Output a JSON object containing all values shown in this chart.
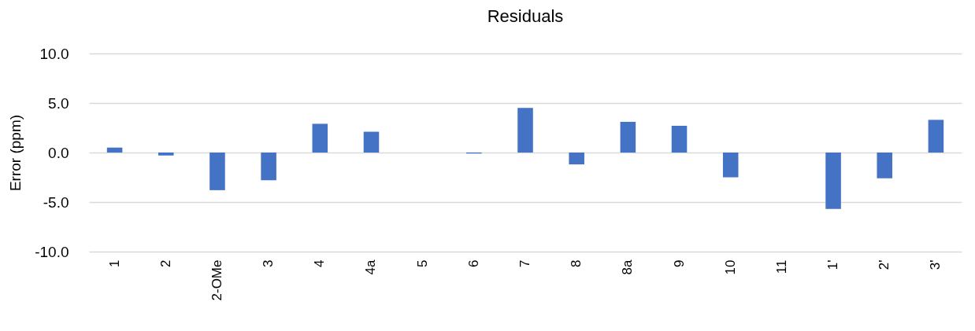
{
  "chart_data": {
    "type": "bar",
    "title": "Residuals",
    "ylabel": "Error (ppm)",
    "categories": [
      "1",
      "2",
      "2-OMe",
      "3",
      "4",
      "4a",
      "5",
      "6",
      "7",
      "8",
      "8a",
      "9",
      "10",
      "11",
      "1'",
      "2'",
      "3'"
    ],
    "values": [
      0.5,
      -0.3,
      -3.8,
      -2.8,
      2.9,
      2.1,
      0,
      -0.1,
      4.5,
      -1.2,
      3.1,
      2.7,
      -2.5,
      0,
      -5.7,
      -2.6,
      3.3
    ],
    "color": "#4472c4",
    "ylim": [
      -10,
      10
    ],
    "yticks": [
      {
        "value": -10,
        "label": "-10.0"
      },
      {
        "value": -5,
        "label": "-5.0"
      },
      {
        "value": 0,
        "label": "0.0"
      },
      {
        "value": 5,
        "label": "5.0"
      },
      {
        "value": 10,
        "label": "10.0"
      }
    ],
    "grid": "y"
  }
}
